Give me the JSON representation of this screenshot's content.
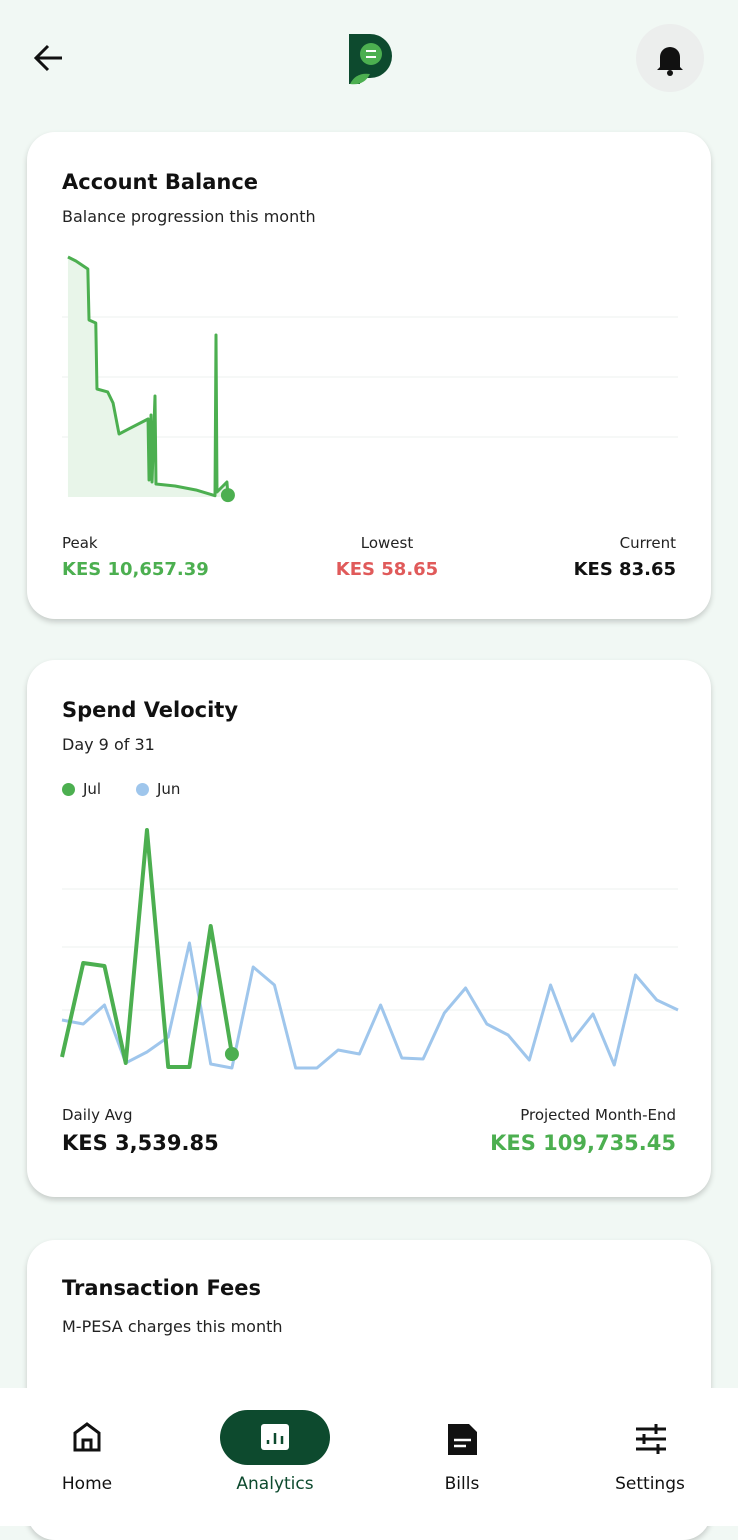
{
  "balance_card": {
    "title": "Account Balance",
    "subtitle": "Balance progression this month",
    "stats": [
      {
        "label": "Peak",
        "value": "KES 10,657.39"
      },
      {
        "label": "Lowest",
        "value": "KES 58.65"
      },
      {
        "label": "Current",
        "value": "KES 83.65"
      }
    ]
  },
  "velocity_card": {
    "title": "Spend Velocity",
    "subtitle": "Day 9 of 31",
    "stats": [
      {
        "label": "Daily Avg",
        "value": "KES 3,539.85"
      },
      {
        "label": "Projected Month-End",
        "value": "KES 109,735.45"
      }
    ]
  },
  "fees_card": {
    "title": "Transaction Fees",
    "subtitle": "M-PESA charges this month"
  },
  "nav": [
    "Home",
    "Analytics",
    "Bills",
    "Settings"
  ],
  "chart_data": [
    {
      "type": "area",
      "xlim": [
        0,
        31
      ],
      "ylim": [
        0,
        10657.39
      ],
      "series": [
        {
          "color": "#4caf50",
          "x": [
            0.3,
            0.7,
            1.3,
            1.36,
            1.7,
            1.76,
            2.3,
            2.57,
            2.87,
            4.33,
            4.38,
            4.48,
            4.53,
            4.68,
            4.73,
            5.69,
            6.74,
            7.7,
            7.75,
            7.8,
            8.3,
            8.35
          ],
          "values": [
            10657.39,
            10480,
            10125,
            7860,
            7727,
            4796,
            4663,
            4174,
            2798,
            3464,
            755,
            3641,
            666,
            4485,
            577,
            488,
            311,
            58.65,
            7194,
            222,
            666,
            83.65
          ]
        }
      ]
    },
    {
      "type": "line",
      "xlim": [
        1,
        30
      ],
      "ylim": [
        0,
        12500
      ],
      "series": [
        {
          "name": "Jul",
          "color": "#4caf50",
          "x": [
            1,
            2,
            3,
            4,
            5,
            6,
            7,
            8,
            9
          ],
          "values": [
            650,
            5350,
            5200,
            350,
            12000,
            150,
            150,
            7200,
            800
          ]
        },
        {
          "name": "Jun",
          "color": "#9fc6ec",
          "x": [
            1,
            2,
            3,
            4,
            5,
            6,
            7,
            8,
            9,
            10,
            11,
            12,
            13,
            14,
            15,
            16,
            17,
            18,
            19,
            20,
            21,
            22,
            23,
            24,
            25,
            26,
            27,
            28,
            29,
            30
          ],
          "values": [
            2500,
            2300,
            3250,
            350,
            900,
            1650,
            6350,
            300,
            100,
            5150,
            4250,
            100,
            100,
            1000,
            800,
            3250,
            600,
            550,
            2850,
            4100,
            2300,
            1750,
            500,
            4250,
            1450,
            2800,
            250,
            4750,
            3500,
            3000
          ]
        }
      ]
    }
  ]
}
